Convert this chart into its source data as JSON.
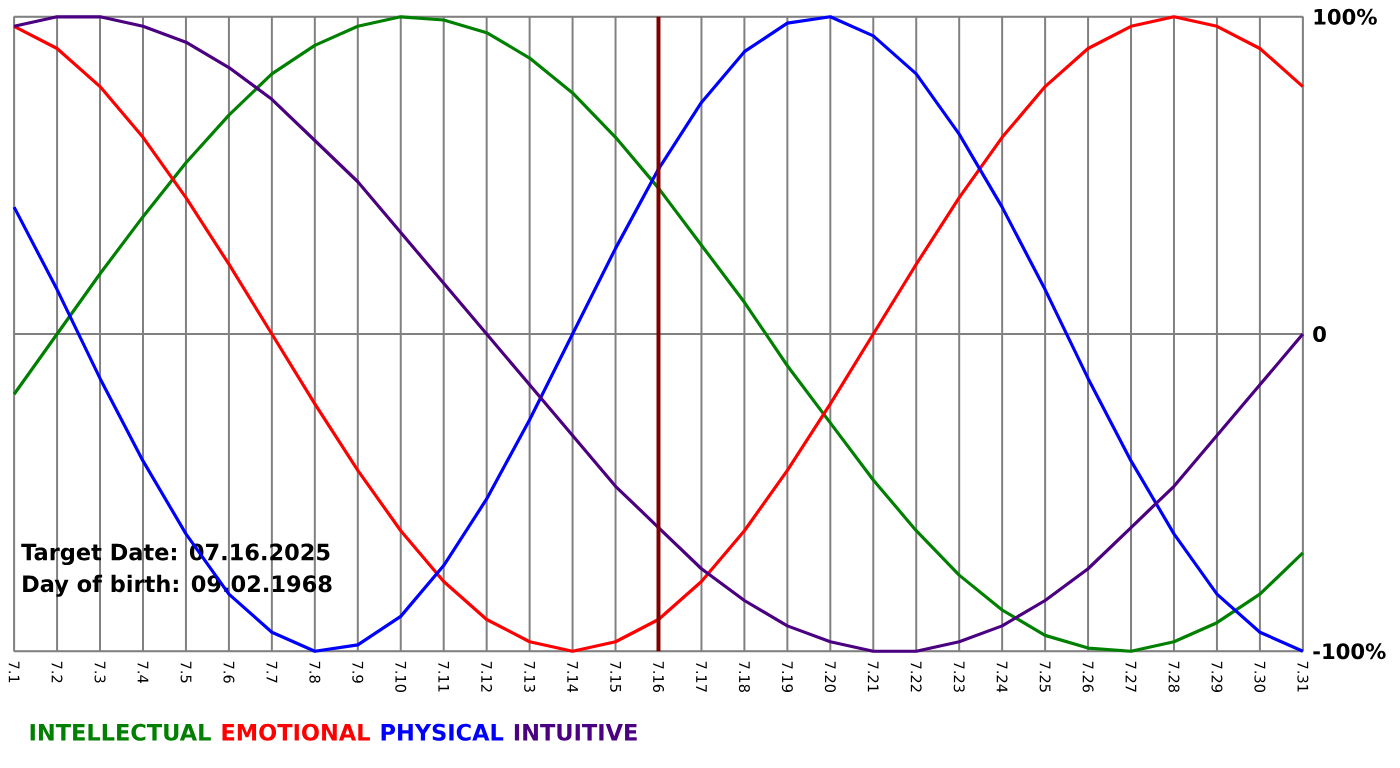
{
  "chart_data": {
    "type": "line",
    "categories": [
      "7.1",
      "7.2",
      "7.3",
      "7.4",
      "7.5",
      "7.6",
      "7.7",
      "7.8",
      "7.9",
      "7.10",
      "7.11",
      "7.12",
      "7.13",
      "7.14",
      "7.15",
      "7.16",
      "7.17",
      "7.18",
      "7.19",
      "7.20",
      "7.21",
      "7.22",
      "7.23",
      "7.24",
      "7.25",
      "7.26",
      "7.27",
      "7.28",
      "7.29",
      "7.30",
      "7.31"
    ],
    "series": [
      {
        "name": "INTELLECTUAL",
        "color": "#008000",
        "values": [
          -19,
          0,
          19,
          37,
          54,
          69,
          82,
          91,
          97,
          100,
          99,
          95,
          87,
          76,
          62,
          46,
          28,
          10,
          -10,
          -28,
          -46,
          -62,
          -76,
          -87,
          -95,
          -99,
          -100,
          -97,
          -91,
          -82,
          -69
        ]
      },
      {
        "name": "EMOTIONAL",
        "color": "#ff0000",
        "values": [
          97,
          90,
          78,
          62,
          43,
          22,
          0,
          -22,
          -43,
          -62,
          -78,
          -90,
          -97,
          -100,
          -97,
          -90,
          -78,
          -62,
          -43,
          -22,
          0,
          22,
          43,
          62,
          78,
          90,
          97,
          100,
          97,
          90,
          78
        ]
      },
      {
        "name": "PHYSICAL",
        "color": "#0000ff",
        "values": [
          40,
          14,
          -14,
          -40,
          -63,
          -82,
          -94,
          -100,
          -98,
          -89,
          -73,
          -52,
          -27,
          0,
          27,
          52,
          73,
          89,
          98,
          100,
          94,
          82,
          63,
          40,
          14,
          -14,
          -40,
          -63,
          -82,
          -94,
          -100
        ]
      },
      {
        "name": "INTUITIVE",
        "color": "#4b0082",
        "values": [
          97,
          100,
          100,
          97,
          92,
          84,
          74,
          61,
          48,
          32,
          16,
          0,
          -16,
          -32,
          -48,
          -61,
          -74,
          -84,
          -92,
          -97,
          -100,
          -100,
          -97,
          -92,
          -84,
          -74,
          -61,
          -48,
          -32,
          -16,
          0
        ]
      }
    ],
    "ylim": [
      -100,
      100
    ],
    "yticks": [
      {
        "value": 100,
        "label": "100%"
      },
      0,
      {
        "value": -100,
        "label": "-100%"
      }
    ],
    "grid": true,
    "legend": "bottom left",
    "ref_lines": [
      {
        "axis": "x",
        "value": "7.16",
        "color": "#800000"
      }
    ],
    "annotations": [
      "Target Date: 07.16.2025",
      "Day of birth: 09.02.1968"
    ]
  }
}
